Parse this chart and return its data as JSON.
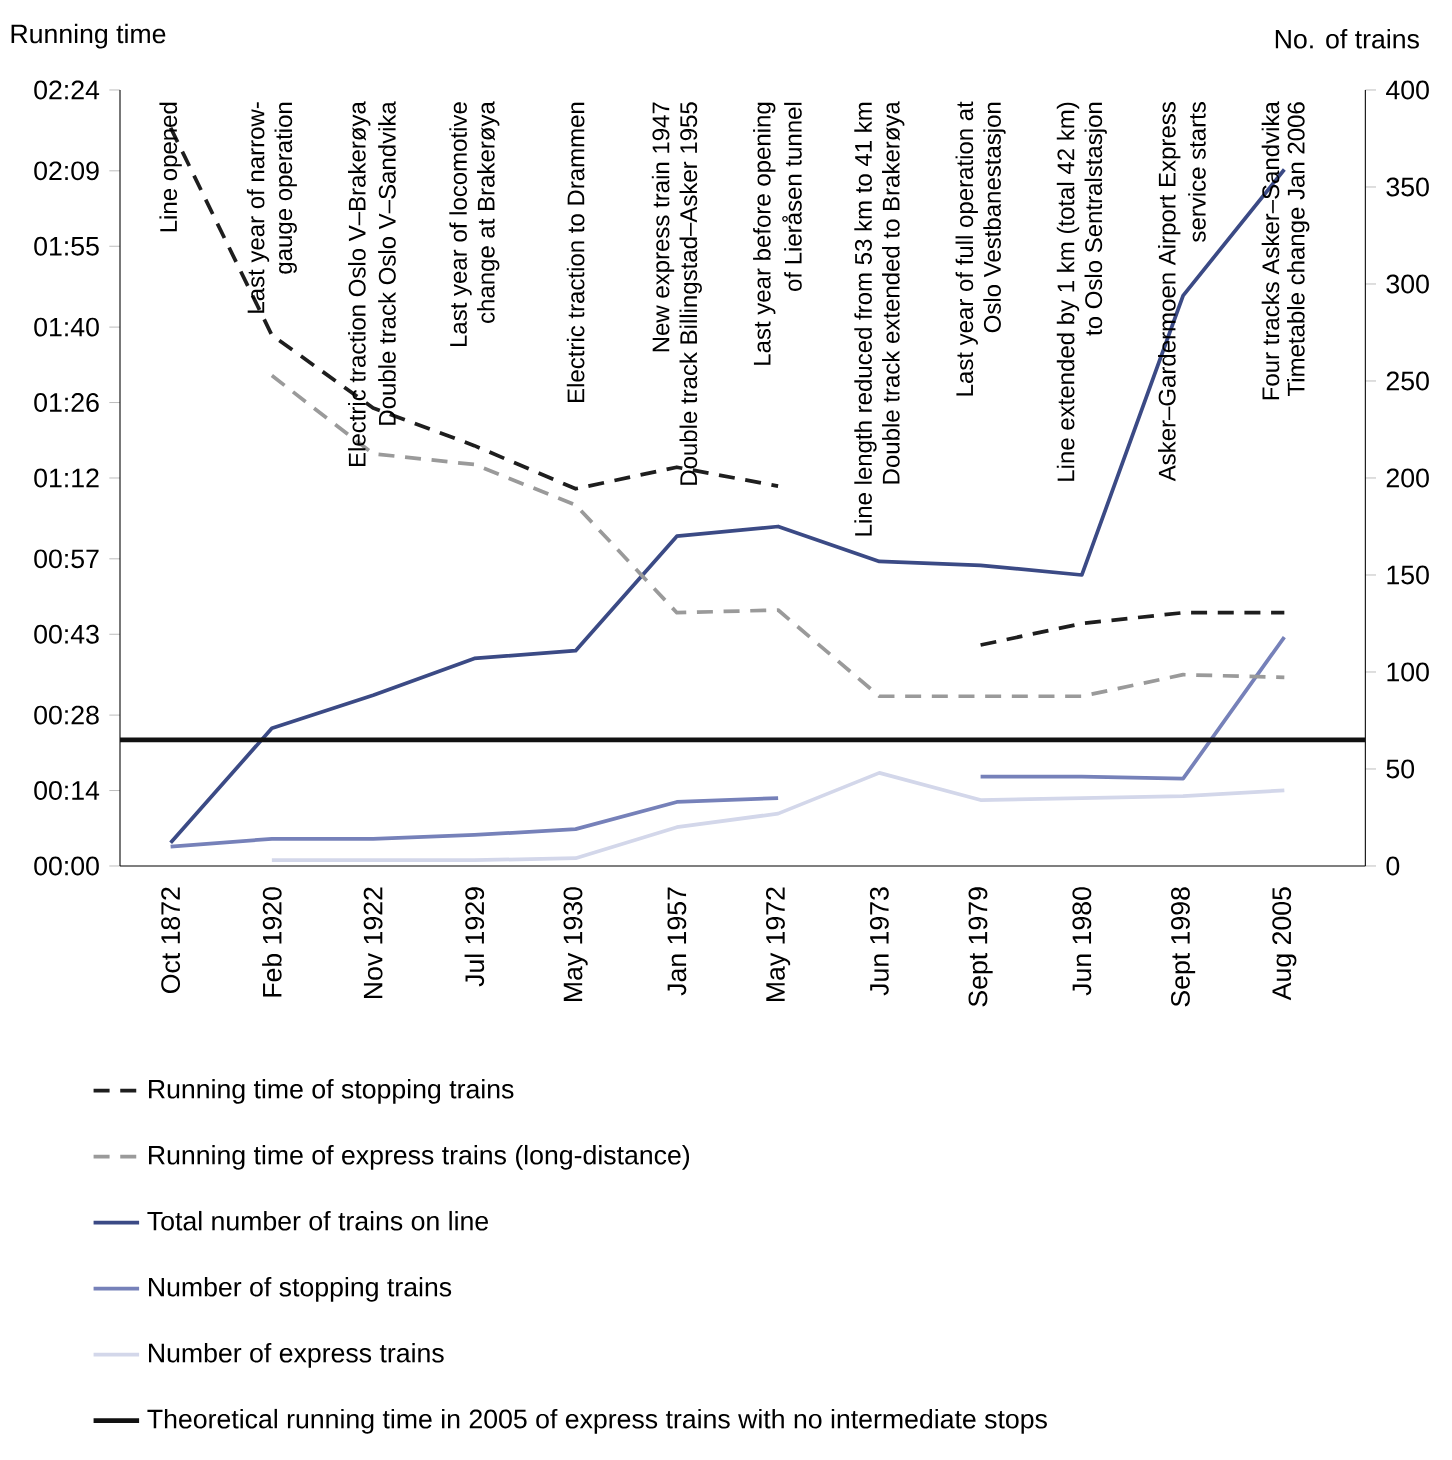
{
  "chart_data": {
    "type": "line",
    "ylabel": "Running time",
    "y2label": "No. of trains",
    "categories": [
      "Oct 1872",
      "Feb 1920",
      "Nov 1922",
      "Jul 1929",
      "May 1930",
      "Jan 1957",
      "May 1972",
      "Jun 1973",
      "Sept 1979",
      "Jun 1980",
      "Sept 1998",
      "Aug 2005"
    ],
    "series": [
      {
        "name": "Running time of stopping trains",
        "color": "#1e1e1e",
        "line_style": "dashed",
        "values": [
          137,
          98.5,
          85,
          78,
          70,
          74,
          70.5,
          null,
          41,
          45,
          47,
          47
        ]
      },
      {
        "name": "Running time of express trains (long-distance)",
        "color": "#9a9a9a",
        "line_style": "dashed",
        "values": [
          null,
          91,
          76.5,
          74.5,
          67,
          47,
          47.5,
          31.5,
          31.5,
          31.5,
          35.5,
          35
        ]
      },
      {
        "name": "Total number of trains on line",
        "color": "#3b4a85",
        "line_style": "solid",
        "axis": "y2",
        "values": [
          12,
          71,
          88,
          107,
          111,
          170,
          175,
          157,
          155,
          150,
          294,
          359
        ]
      },
      {
        "name": "Number of stopping trains",
        "color": "#7681b9",
        "line_style": "solid",
        "axis": "y2",
        "values": [
          10,
          14,
          14,
          16,
          19,
          33,
          35,
          null,
          46,
          46,
          45,
          118
        ]
      },
      {
        "name": "Number of express trains",
        "color": "#d3d7ea",
        "line_style": "solid",
        "axis": "y2",
        "values": [
          null,
          3,
          3,
          3,
          4,
          20,
          27,
          48,
          34,
          35,
          36,
          39
        ]
      }
    ],
    "ref_lines": [
      {
        "axis": "y",
        "value": 23.4,
        "label": "Theoretical running time in 2005 of express trains with no intermediate stops",
        "color": "#111111"
      }
    ],
    "ylim": [
      0,
      144
    ],
    "yticks": [
      {
        "value": 0,
        "label": "00:00"
      },
      {
        "value": 14,
        "label": "00:14"
      },
      {
        "value": 28,
        "label": "00:28"
      },
      {
        "value": 43,
        "label": "00:43"
      },
      {
        "value": 57,
        "label": "00:57"
      },
      {
        "value": 72,
        "label": "01:12"
      },
      {
        "value": 86,
        "label": "01:26"
      },
      {
        "value": 100,
        "label": "01:40"
      },
      {
        "value": 115,
        "label": "01:55"
      },
      {
        "value": 129,
        "label": "02:09"
      },
      {
        "value": 144,
        "label": "02:24"
      }
    ],
    "y2lim": [
      0,
      400
    ],
    "y2ticks": [
      0,
      50,
      100,
      150,
      200,
      250,
      300,
      350,
      400
    ],
    "legend": "bottom",
    "annotations": [
      "Line opened",
      "Last year of narrow-",
      "gauge operation",
      "Electric traction Oslo V–Brakerøya",
      "Double track Oslo V–Sandvika",
      "Last year of locomotive",
      "change at Brakerøya",
      "Electric traction to Drammen",
      "New express train 1947",
      "Double track Billingstad–Asker 1955",
      "Last year before opening",
      "of Lieråsen tunnel",
      "Line length reduced from 53 km to 41 km",
      "Double track extended to Brakerøya",
      "Last year of full operation at",
      "Oslo Vestbanestasjon",
      "Line extended by 1 km (total 42 km)",
      "to Oslo Sentralstasjon",
      "Asker–Gardermoen Airport Express",
      "service starts",
      "Four tracks Asker–Sandvika",
      "Timetable change Jan 2006"
    ]
  }
}
